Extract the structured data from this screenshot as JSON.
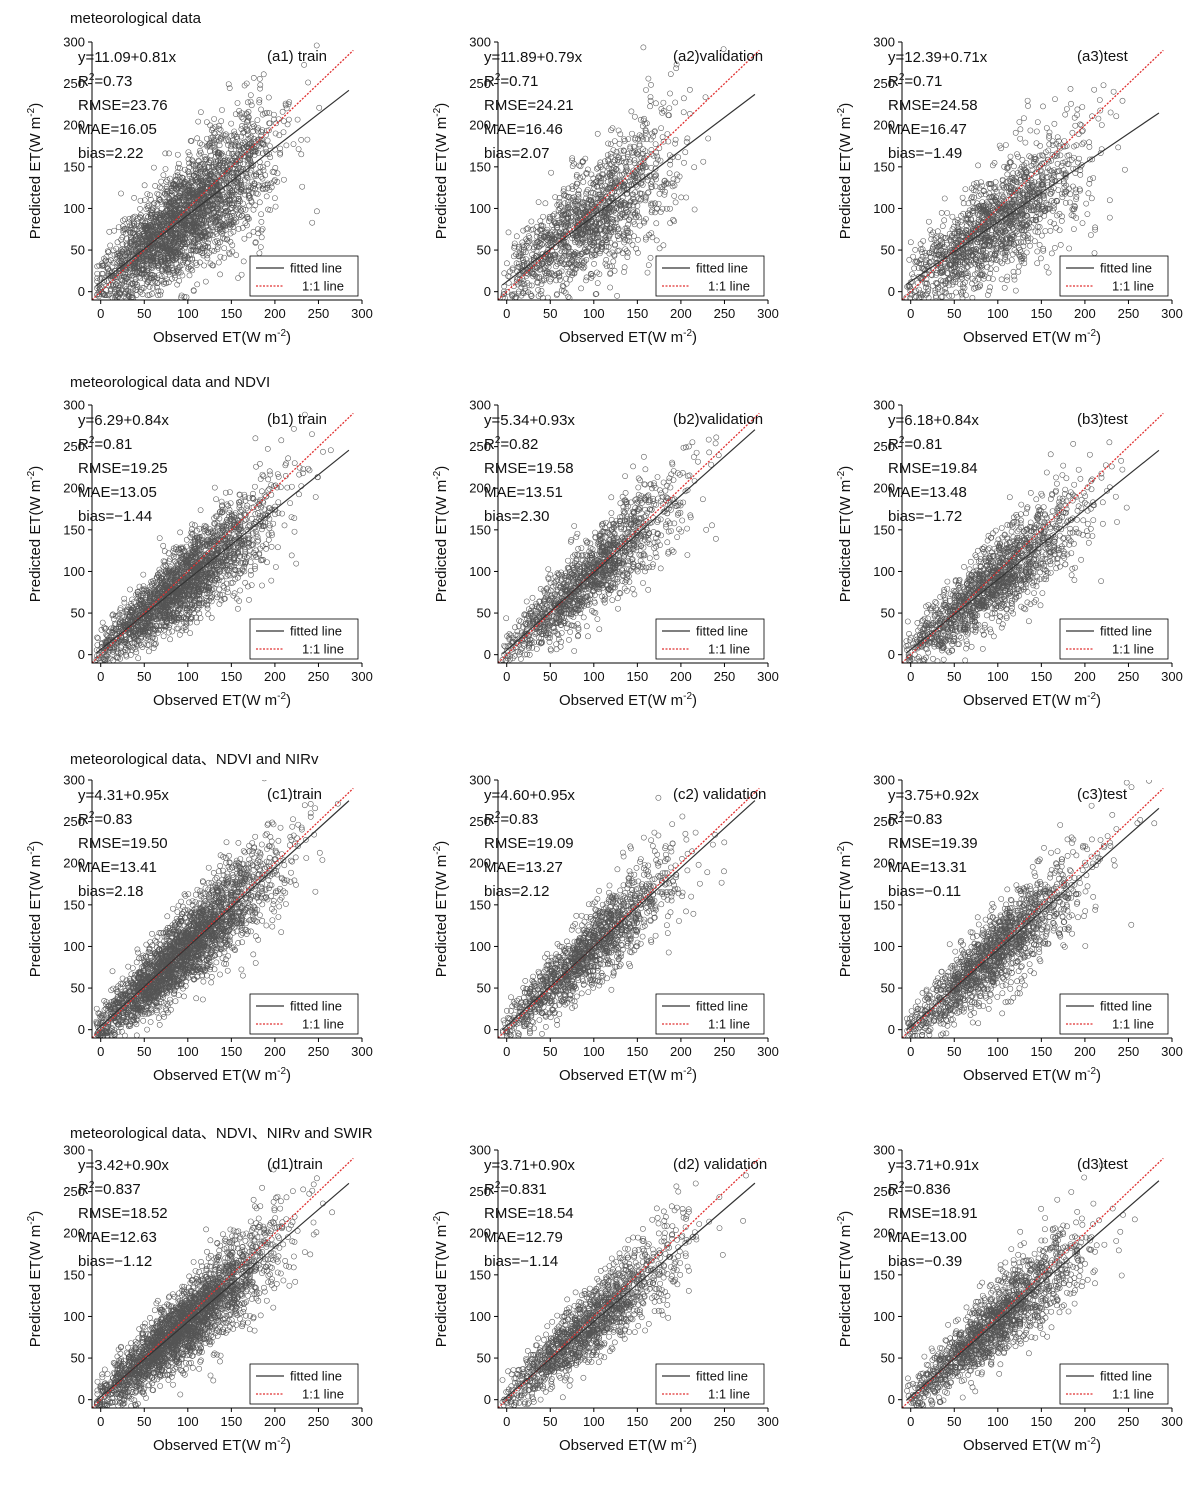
{
  "figure": {
    "row_titles": [
      "meteorological data",
      "meteorological data and NDVI",
      "meteorological data、NDVI and NIRv",
      "meteorological data、NDVI、NIRv and SWIR"
    ],
    "xlabel": "Observed ET(W m",
    "ylabel": "Predicted ET(W m",
    "unit_exp": "-2",
    "legend": {
      "fitted": "fitted line",
      "identity": "1:1 line"
    },
    "colors": {
      "points": "#555555",
      "fitted": "#333333",
      "identity": "#e03030"
    }
  },
  "chart_data": [
    {
      "id": "a1",
      "type": "scatter",
      "panel_label": "(a1) train",
      "equation": "y=11.09+0.81x",
      "intercept": 11.09,
      "slope": 0.81,
      "r2_label": "R",
      "r2_value": "=0.73",
      "rmse": "RMSE=23.76",
      "mae": "MAE=16.05",
      "bias": "bias=2.22",
      "xlim": [
        -10,
        300
      ],
      "ylim": [
        -10,
        300
      ],
      "xticks": [
        0,
        50,
        100,
        150,
        200,
        250,
        300
      ],
      "yticks": [
        0,
        50,
        100,
        150,
        200,
        250,
        300
      ],
      "n": 2600,
      "noise": 36,
      "seed": 11
    },
    {
      "id": "a2",
      "type": "scatter",
      "panel_label": "(a2)validation",
      "equation": "y=11.89+0.79x",
      "intercept": 11.89,
      "slope": 0.79,
      "r2_label": "R",
      "r2_value": "=0.71",
      "rmse": "RMSE=24.21",
      "mae": "MAE=16.46",
      "bias": "bias=2.07",
      "xlim": [
        -10,
        300
      ],
      "ylim": [
        -10,
        300
      ],
      "xticks": [
        0,
        50,
        100,
        150,
        200,
        250,
        300
      ],
      "yticks": [
        0,
        50,
        100,
        150,
        200,
        250,
        300
      ],
      "n": 1400,
      "noise": 36,
      "seed": 12
    },
    {
      "id": "a3",
      "type": "scatter",
      "panel_label": "(a3)test",
      "equation": "y=12.39+0.71x",
      "intercept": 12.39,
      "slope": 0.71,
      "r2_label": "R",
      "r2_value": "=0.71",
      "rmse": "RMSE=24.58",
      "mae": "MAE=16.47",
      "bias": "bias=−1.49",
      "xlim": [
        -10,
        300
      ],
      "ylim": [
        -10,
        300
      ],
      "xticks": [
        0,
        50,
        100,
        150,
        200,
        250,
        300
      ],
      "yticks": [
        0,
        50,
        100,
        150,
        200,
        250,
        300
      ],
      "n": 1500,
      "noise": 34,
      "seed": 13
    },
    {
      "id": "b1",
      "type": "scatter",
      "panel_label": "(b1) train",
      "equation": "y=6.29+0.84x",
      "intercept": 6.29,
      "slope": 0.84,
      "r2_label": "R",
      "r2_value": "=0.81",
      "rmse": "RMSE=19.25",
      "mae": "MAE=13.05",
      "bias": "bias=−1.44",
      "xlim": [
        -10,
        300
      ],
      "ylim": [
        -10,
        300
      ],
      "xticks": [
        0,
        50,
        100,
        150,
        200,
        250,
        300
      ],
      "yticks": [
        0,
        50,
        100,
        150,
        200,
        250,
        300
      ],
      "n": 2200,
      "noise": 26,
      "seed": 21
    },
    {
      "id": "b2",
      "type": "scatter",
      "panel_label": "(b2)validation",
      "equation": "y=5.34+0.93x",
      "intercept": 5.34,
      "slope": 0.93,
      "r2_label": "R",
      "r2_value": "=0.82",
      "rmse": "RMSE=19.58",
      "mae": "MAE=13.51",
      "bias": "bias=2.30",
      "xlim": [
        -10,
        300
      ],
      "ylim": [
        -10,
        300
      ],
      "xticks": [
        0,
        50,
        100,
        150,
        200,
        250,
        300
      ],
      "yticks": [
        0,
        50,
        100,
        150,
        200,
        250,
        300
      ],
      "n": 1400,
      "noise": 26,
      "seed": 22
    },
    {
      "id": "b3",
      "type": "scatter",
      "panel_label": "(b3)test",
      "equation": "y=6.18+0.84x",
      "intercept": 6.18,
      "slope": 0.84,
      "r2_label": "R",
      "r2_value": "=0.81",
      "rmse": "RMSE=19.84",
      "mae": "MAE=13.48",
      "bias": "bias=−1.72",
      "xlim": [
        -10,
        300
      ],
      "ylim": [
        -10,
        300
      ],
      "xticks": [
        0,
        50,
        100,
        150,
        200,
        250,
        300
      ],
      "yticks": [
        0,
        50,
        100,
        150,
        200,
        250,
        300
      ],
      "n": 1500,
      "noise": 26,
      "seed": 23
    },
    {
      "id": "c1",
      "type": "scatter",
      "panel_label": "(c1)train",
      "equation": "y=4.31+0.95x",
      "intercept": 4.31,
      "slope": 0.95,
      "r2_label": "R",
      "r2_value": "=0.83",
      "rmse": "RMSE=19.50",
      "mae": "MAE=13.41",
      "bias": "bias=2.18",
      "xlim": [
        -10,
        300
      ],
      "ylim": [
        -10,
        300
      ],
      "xticks": [
        0,
        50,
        100,
        150,
        200,
        250,
        300
      ],
      "yticks": [
        0,
        50,
        100,
        150,
        200,
        250,
        300
      ],
      "n": 2600,
      "noise": 25,
      "seed": 31
    },
    {
      "id": "c2",
      "type": "scatter",
      "panel_label": "(c2) validation",
      "equation": "y=4.60+0.95x",
      "intercept": 4.6,
      "slope": 0.95,
      "r2_label": "R",
      "r2_value": "=0.83",
      "rmse": "RMSE=19.09",
      "mae": "MAE=13.27",
      "bias": "bias=2.12",
      "xlim": [
        -10,
        300
      ],
      "ylim": [
        -10,
        300
      ],
      "xticks": [
        0,
        50,
        100,
        150,
        200,
        250,
        300
      ],
      "yticks": [
        0,
        50,
        100,
        150,
        200,
        250,
        300
      ],
      "n": 1400,
      "noise": 24,
      "seed": 32
    },
    {
      "id": "c3",
      "type": "scatter",
      "panel_label": "(c3)test",
      "equation": "y=3.75+0.92x",
      "intercept": 3.75,
      "slope": 0.92,
      "r2_label": "R",
      "r2_value": "=0.83",
      "rmse": "RMSE=19.39",
      "mae": "MAE=13.31",
      "bias": "bias=−0.11",
      "xlim": [
        -10,
        300
      ],
      "ylim": [
        -10,
        300
      ],
      "xticks": [
        0,
        50,
        100,
        150,
        200,
        250,
        300
      ],
      "yticks": [
        0,
        50,
        100,
        150,
        200,
        250,
        300
      ],
      "n": 1500,
      "noise": 25,
      "seed": 33
    },
    {
      "id": "d1",
      "type": "scatter",
      "panel_label": "(d1)train",
      "equation": "y=3.42+0.90x",
      "intercept": 3.42,
      "slope": 0.9,
      "r2_label": "R",
      "r2_value": "=0.837",
      "rmse": "RMSE=18.52",
      "mae": "MAE=12.63",
      "bias": "bias=−1.12",
      "xlim": [
        -10,
        300
      ],
      "ylim": [
        -10,
        300
      ],
      "xticks": [
        0,
        50,
        100,
        150,
        200,
        250,
        300
      ],
      "yticks": [
        0,
        50,
        100,
        150,
        200,
        250,
        300
      ],
      "n": 2600,
      "noise": 24,
      "seed": 41
    },
    {
      "id": "d2",
      "type": "scatter",
      "panel_label": "(d2) validation",
      "equation": "y=3.71+0.90x",
      "intercept": 3.71,
      "slope": 0.9,
      "r2_label": "R",
      "r2_value": "=0.831",
      "rmse": "RMSE=18.54",
      "mae": "MAE=12.79",
      "bias": "bias=−1.14",
      "xlim": [
        -10,
        300
      ],
      "ylim": [
        -10,
        300
      ],
      "xticks": [
        0,
        50,
        100,
        150,
        200,
        250,
        300
      ],
      "yticks": [
        0,
        50,
        100,
        150,
        200,
        250,
        300
      ],
      "n": 1400,
      "noise": 24,
      "seed": 42
    },
    {
      "id": "d3",
      "type": "scatter",
      "panel_label": "(d3)test",
      "equation": "y=3.71+0.91x",
      "intercept": 3.71,
      "slope": 0.91,
      "r2_label": "R",
      "r2_value": "=0.836",
      "rmse": "RMSE=18.91",
      "mae": "MAE=13.00",
      "bias": "bias=−0.39",
      "xlim": [
        -10,
        300
      ],
      "ylim": [
        -10,
        300
      ],
      "xticks": [
        0,
        50,
        100,
        150,
        200,
        250,
        300
      ],
      "yticks": [
        0,
        50,
        100,
        150,
        200,
        250,
        300
      ],
      "n": 1500,
      "noise": 24,
      "seed": 43
    }
  ]
}
